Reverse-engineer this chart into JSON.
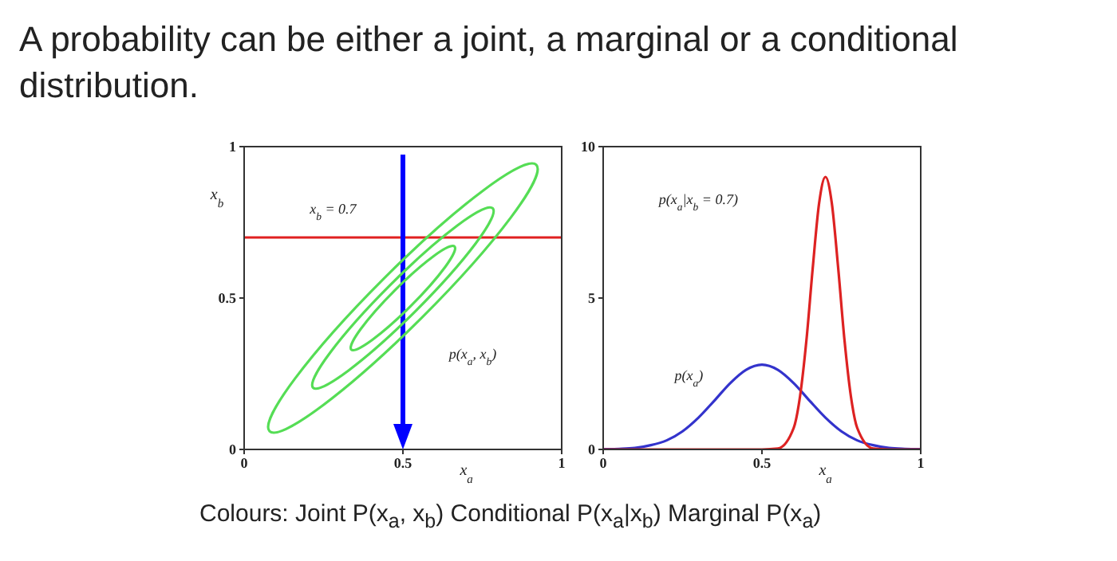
{
  "chart_data": [
    {
      "type": "line",
      "title": "A probability can be either a joint, a marginal or a conditional distribution.",
      "xlabel": "x$_{a}$",
      "ylabel": "x$_{b}$",
      "xlim": [
        0,
        1
      ],
      "ylim": [
        0,
        1
      ],
      "xticks": [
        0,
        0.5,
        1
      ],
      "yticks": [
        0,
        0.5,
        1
      ],
      "grid": false,
      "marker": "none",
      "line_style": "solid",
      "ref_lines": [
        {
          "axis": "y",
          "value": 0.7,
          "color": "#e02020"
        },
        {
          "axis": "x",
          "value": 0.5,
          "color": "#0000ff"
        }
      ],
      "annotations": [
        "x$_{b}$ = 0.7",
        "p(x$_{a}$, x$_{b}$)"
      ]
    },
    {
      "type": "line",
      "xlabel": "x$_{a}$",
      "xlim": [
        0,
        1
      ],
      "ylim": [
        0,
        10
      ],
      "xticks": [
        0,
        0.5,
        1
      ],
      "yticks": [
        0,
        5,
        10
      ],
      "grid": false,
      "marker": "none",
      "line_style": "solid",
      "series": [
        {
          "color": "#3333cc",
          "x": [
            0,
            0.05,
            0.1,
            0.15,
            0.2,
            0.25,
            0.3,
            0.35,
            0.4,
            0.45,
            0.5,
            0.55,
            0.6,
            0.65,
            0.7,
            0.75,
            0.8,
            0.85,
            0.9,
            0.95,
            1
          ],
          "values": [
            0.01,
            0.02,
            0.05,
            0.14,
            0.3,
            0.6,
            1.05,
            1.61,
            2.19,
            2.63,
            2.8,
            2.63,
            2.19,
            1.61,
            1.05,
            0.6,
            0.3,
            0.14,
            0.05,
            0.02,
            0.01
          ]
        },
        {
          "color": "#dd2222",
          "x": [
            0,
            0.5,
            0.55,
            0.6,
            0.62,
            0.64,
            0.66,
            0.68,
            0.7,
            0.72,
            0.74,
            0.76,
            0.78,
            0.8,
            0.85,
            0.9,
            1
          ],
          "values": [
            0,
            0,
            0.03,
            0.71,
            1.76,
            3.6,
            6.0,
            8.13,
            9,
            8.13,
            6.0,
            3.6,
            1.76,
            0.71,
            0.03,
            0,
            0
          ]
        }
      ],
      "annotations": [
        "p(x$_{a}$|x$_{b}$ = 0.7)",
        "p(x$_{a}$)",
        "Colours: Joint P(x$_{a}$, x$_{b}$) Conditional P(x$_{a}$|x$_{b}$) Marginal P(x$_{a}$)"
      ]
    }
  ]
}
